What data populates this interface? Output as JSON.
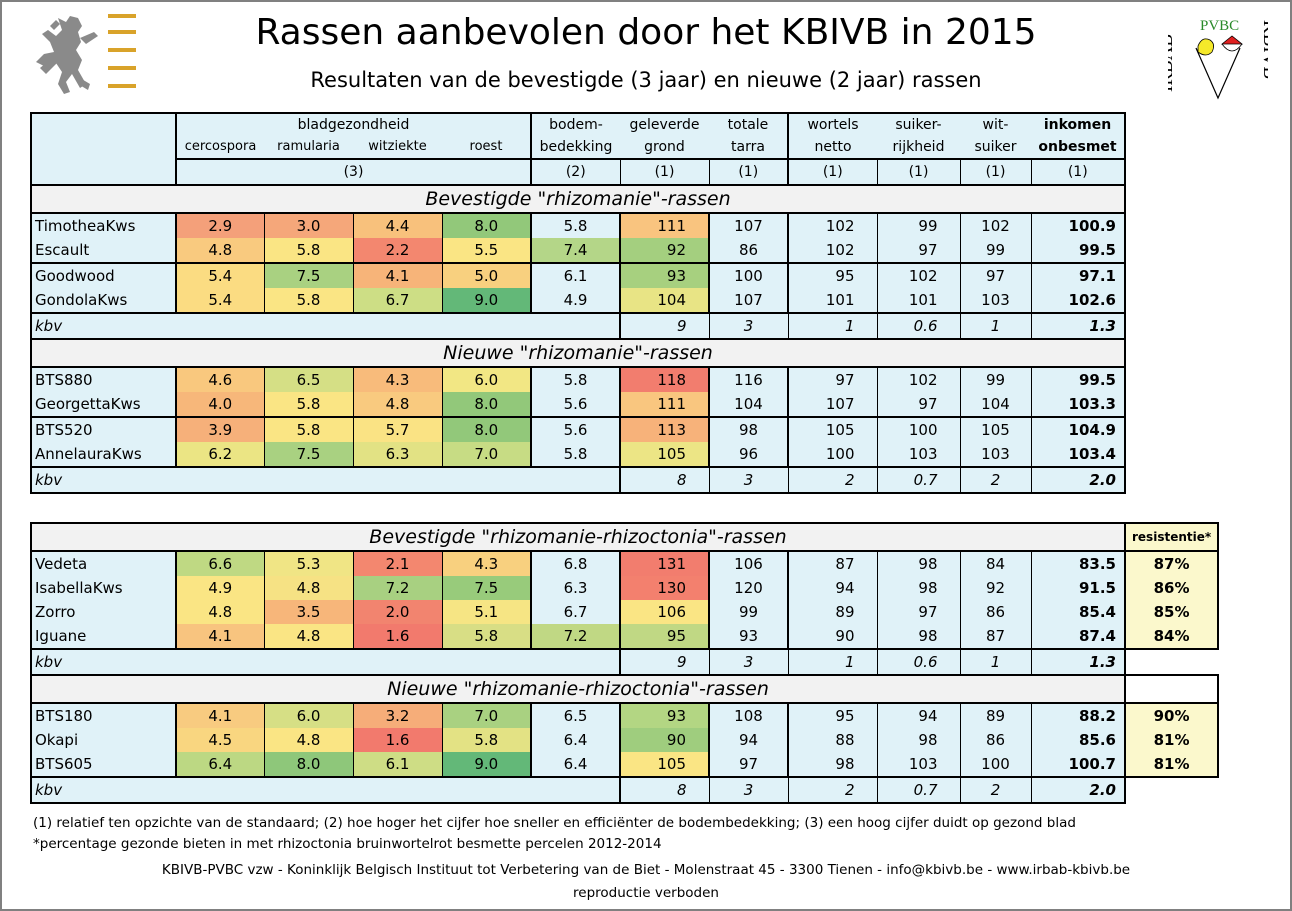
{
  "header": {
    "title": "Rassen aanbevolen door het KBIVB in 2015",
    "subtitle": "Resultaten van de bevestigde (3 jaar) en nieuwe (2 jaar) rassen",
    "logo_right": {
      "left_text": "IRBAB",
      "top_text": "PVBC",
      "right_text": "KBIVB"
    }
  },
  "columns": {
    "group_bladgezondheid": "bladgezondheid",
    "cercospora": "cercospora",
    "ramularia": "ramularia",
    "witziekte": "witziekte",
    "roest": "roest",
    "bodem_1": "bodem-",
    "bodem_2": "bedekking",
    "grond_1": "geleverde",
    "grond_2": "grond",
    "tarra_1": "totale",
    "tarra_2": "tarra",
    "wortels_1": "wortels",
    "wortels_2": "netto",
    "suiker_1": "suiker-",
    "suiker_2": "rijkheid",
    "wit_1": "wit-",
    "wit_2": "suiker",
    "ink_1": "inkomen",
    "ink_2": "onbesmet",
    "note_blad": "(3)",
    "note_bodem": "(2)",
    "note_1": "(1)",
    "resistentie": "resistentie*"
  },
  "sections": [
    {
      "title": "Bevestigde \"rhizomanie\"-rassen",
      "groups": [
        [
          {
            "name": "TimotheaKws",
            "c": [
              "2.9",
              "3.0",
              "4.4",
              "8.0"
            ],
            "colors": [
              "#f4a07a",
              "#f5a77a",
              "#f8c17c",
              "#92c87a"
            ],
            "bodem": "5.8",
            "bodem_color": "",
            "grond": "111",
            "grond_color": "#f9c47f",
            "tarra": "107",
            "wortels": "102",
            "suiker": "99",
            "wit": "102",
            "inkomen": "100.9"
          },
          {
            "name": "Escault",
            "c": [
              "4.8",
              "5.8",
              "2.2",
              "5.5"
            ],
            "colors": [
              "#f9ca7f",
              "#fae584",
              "#f3876f",
              "#fae584"
            ],
            "bodem": "7.4",
            "bodem_color": "#b4d688",
            "grond": "92",
            "grond_color": "#a4cf7f",
            "tarra": "86",
            "wortels": "102",
            "suiker": "97",
            "wit": "99",
            "inkomen": "99.5"
          }
        ],
        [
          {
            "name": "Goodwood",
            "c": [
              "5.4",
              "7.5",
              "4.1",
              "5.0"
            ],
            "colors": [
              "#fbdc82",
              "#a9d181",
              "#f7b479",
              "#f8d07f"
            ],
            "bodem": "6.1",
            "bodem_color": "",
            "grond": "93",
            "grond_color": "#a7d07f",
            "tarra": "100",
            "wortels": "95",
            "suiker": "102",
            "wit": "97",
            "inkomen": "97.1"
          },
          {
            "name": "GondolaKws",
            "c": [
              "5.4",
              "5.8",
              "6.7",
              "9.0"
            ],
            "colors": [
              "#fbdc82",
              "#fae584",
              "#cdde85",
              "#63b878"
            ],
            "bodem": "4.9",
            "bodem_color": "",
            "grond": "104",
            "grond_color": "#e8e485",
            "tarra": "107",
            "wortels": "101",
            "suiker": "101",
            "wit": "103",
            "inkomen": "102.6"
          }
        ]
      ],
      "kbv": {
        "label": "kbv",
        "grond": "9",
        "tarra": "3",
        "wortels": "1",
        "suiker": "0.6",
        "wit": "1",
        "inkomen": "1.3"
      }
    },
    {
      "title": "Nieuwe \"rhizomanie\"-rassen",
      "groups": [
        [
          {
            "name": "BTS880",
            "c": [
              "4.6",
              "6.5",
              "4.3",
              "6.0"
            ],
            "colors": [
              "#f9c87e",
              "#d5df85",
              "#f8bb7b",
              "#f2e784"
            ],
            "bodem": "5.8",
            "bodem_color": "",
            "grond": "118",
            "grond_color": "#f27d6e",
            "tarra": "116",
            "wortels": "97",
            "suiker": "102",
            "wit": "99",
            "inkomen": "99.5"
          },
          {
            "name": "GeorgettaKws",
            "c": [
              "4.0",
              "5.8",
              "4.8",
              "8.0"
            ],
            "colors": [
              "#f7b77a",
              "#fae584",
              "#f9ca7f",
              "#92c87a"
            ],
            "bodem": "5.6",
            "bodem_color": "",
            "grond": "111",
            "grond_color": "#f9c67f",
            "tarra": "104",
            "wortels": "107",
            "suiker": "97",
            "wit": "104",
            "inkomen": "103.3"
          }
        ],
        [
          {
            "name": "BTS520",
            "c": [
              "3.9",
              "5.8",
              "5.7",
              "8.0"
            ],
            "colors": [
              "#f6b07a",
              "#fae584",
              "#fae384",
              "#92c87a"
            ],
            "bodem": "5.6",
            "bodem_color": "",
            "grond": "113",
            "grond_color": "#f7b27a",
            "tarra": "98",
            "wortels": "105",
            "suiker": "100",
            "wit": "105",
            "inkomen": "104.9"
          },
          {
            "name": "AnnelauraKws",
            "c": [
              "6.2",
              "7.5",
              "6.3",
              "7.0"
            ],
            "colors": [
              "#ebe584",
              "#a9d181",
              "#e2e284",
              "#c7dc84"
            ],
            "bodem": "5.8",
            "bodem_color": "",
            "grond": "105",
            "grond_color": "#ece585",
            "tarra": "96",
            "wortels": "100",
            "suiker": "103",
            "wit": "103",
            "inkomen": "103.4"
          }
        ]
      ],
      "kbv": {
        "label": "kbv",
        "grond": "8",
        "tarra": "3",
        "wortels": "2",
        "suiker": "0.7",
        "wit": "2",
        "inkomen": "2.0"
      }
    },
    {
      "title": "Bevestigde \"rhizomanie-rhizoctonia\"-rassen",
      "groups": [
        [
          {
            "name": "Vedeta",
            "c": [
              "6.6",
              "5.3",
              "2.1",
              "4.3"
            ],
            "colors": [
              "#bfd983",
              "#f0e585",
              "#f3876f",
              "#f8d07f"
            ],
            "bodem": "6.8",
            "bodem_color": "",
            "grond": "131",
            "grond_color": "#f27d6e",
            "tarra": "106",
            "wortels": "87",
            "suiker": "98",
            "wit": "84",
            "inkomen": "83.5",
            "res": "87%"
          },
          {
            "name": "IsabellaKws",
            "c": [
              "4.9",
              "4.8",
              "7.2",
              "7.5"
            ],
            "colors": [
              "#fae584",
              "#f6e284",
              "#a8d081",
              "#98cb7b"
            ],
            "bodem": "6.3",
            "bodem_color": "",
            "grond": "130",
            "grond_color": "#f3806e",
            "tarra": "120",
            "wortels": "94",
            "suiker": "98",
            "wit": "92",
            "inkomen": "91.5",
            "res": "86%"
          },
          {
            "name": "Zorro",
            "c": [
              "4.8",
              "3.5",
              "2.0",
              "5.1"
            ],
            "colors": [
              "#fae584",
              "#f7b67a",
              "#f2846f",
              "#f6e584"
            ],
            "bodem": "6.7",
            "bodem_color": "",
            "grond": "106",
            "grond_color": "#fae584",
            "tarra": "99",
            "wortels": "89",
            "suiker": "97",
            "wit": "86",
            "inkomen": "85.4",
            "res": "85%"
          },
          {
            "name": "Iguane",
            "c": [
              "4.1",
              "4.8",
              "1.6",
              "5.8"
            ],
            "colors": [
              "#f8c47f",
              "#fae584",
              "#f27a6d",
              "#d8de85"
            ],
            "bodem": "7.2",
            "bodem_color": "#c0d884",
            "grond": "95",
            "grond_color": "#c0d884",
            "tarra": "93",
            "wortels": "90",
            "suiker": "98",
            "wit": "87",
            "inkomen": "87.4",
            "res": "84%"
          }
        ]
      ],
      "kbv": {
        "label": "kbv",
        "grond": "9",
        "tarra": "3",
        "wortels": "1",
        "suiker": "0.6",
        "wit": "1",
        "inkomen": "1.3"
      }
    },
    {
      "title": "Nieuwe \"rhizomanie-rhizoctonia\"-rassen",
      "groups": [
        [
          {
            "name": "BTS180",
            "c": [
              "4.1",
              "6.0",
              "3.2",
              "7.0"
            ],
            "colors": [
              "#f8cb80",
              "#d6df85",
              "#f6ad79",
              "#a9d181"
            ],
            "bodem": "6.5",
            "bodem_color": "",
            "grond": "93",
            "grond_color": "#b3d683",
            "tarra": "108",
            "wortels": "95",
            "suiker": "94",
            "wit": "89",
            "inkomen": "88.2",
            "res": "90%"
          },
          {
            "name": "Okapi",
            "c": [
              "4.5",
              "4.8",
              "1.6",
              "5.8"
            ],
            "colors": [
              "#f9d680",
              "#fae584",
              "#f27a6d",
              "#e3e284"
            ],
            "bodem": "6.4",
            "bodem_color": "",
            "grond": "90",
            "grond_color": "#9fcd7e",
            "tarra": "94",
            "wortels": "88",
            "suiker": "98",
            "wit": "86",
            "inkomen": "85.6",
            "res": "81%"
          },
          {
            "name": "BTS605",
            "c": [
              "6.4",
              "8.0",
              "6.1",
              "9.0"
            ],
            "colors": [
              "#bcd883",
              "#8ec77a",
              "#cedd85",
              "#63b878"
            ],
            "bodem": "6.4",
            "bodem_color": "",
            "grond": "105",
            "grond_color": "#fae584",
            "tarra": "97",
            "wortels": "98",
            "suiker": "103",
            "wit": "100",
            "inkomen": "100.7",
            "res": "81%"
          }
        ]
      ],
      "kbv": {
        "label": "kbv",
        "grond": "8",
        "tarra": "3",
        "wortels": "2",
        "suiker": "0.7",
        "wit": "2",
        "inkomen": "2.0"
      }
    }
  ],
  "footer": {
    "note1": "(1) relatief ten opzichte van de standaard; (2) hoe hoger het cijfer hoe sneller en efficiënter de bodembedekking; (3) een hoog cijfer duidt op gezond blad",
    "note2": "*percentage gezonde bieten in met rhizoctonia bruinwortelrot besmette percelen 2012-2014",
    "address": "KBIVB-PVBC vzw - Koninklijk Belgisch Instituut tot Verbetering van de Biet - Molenstraat 45 - 3300 Tienen - info@kbivb.be - www.irbab-kbivb.be",
    "rights": "reproductie verboden"
  }
}
